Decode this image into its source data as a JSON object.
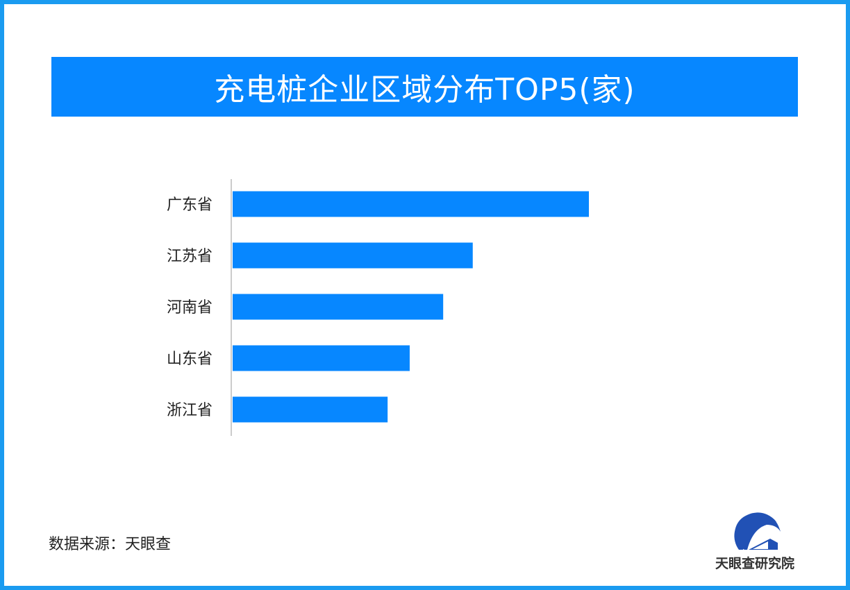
{
  "title": "充电桩企业区域分布TOP5(家)",
  "chart_data": {
    "type": "bar",
    "orientation": "horizontal",
    "title": "充电桩企业区域分布TOP5(家)",
    "categories": [
      "广东省",
      "江苏省",
      "河南省",
      "山东省",
      "浙江省"
    ],
    "values": [
      1.0,
      0.674,
      0.591,
      0.497,
      0.435
    ],
    "value_note": "relative to largest bar; no values or axis printed",
    "grid": false,
    "bar_color": "#0787ff"
  },
  "source": "数据来源：天眼查",
  "logo_text": "天眼查研究院"
}
